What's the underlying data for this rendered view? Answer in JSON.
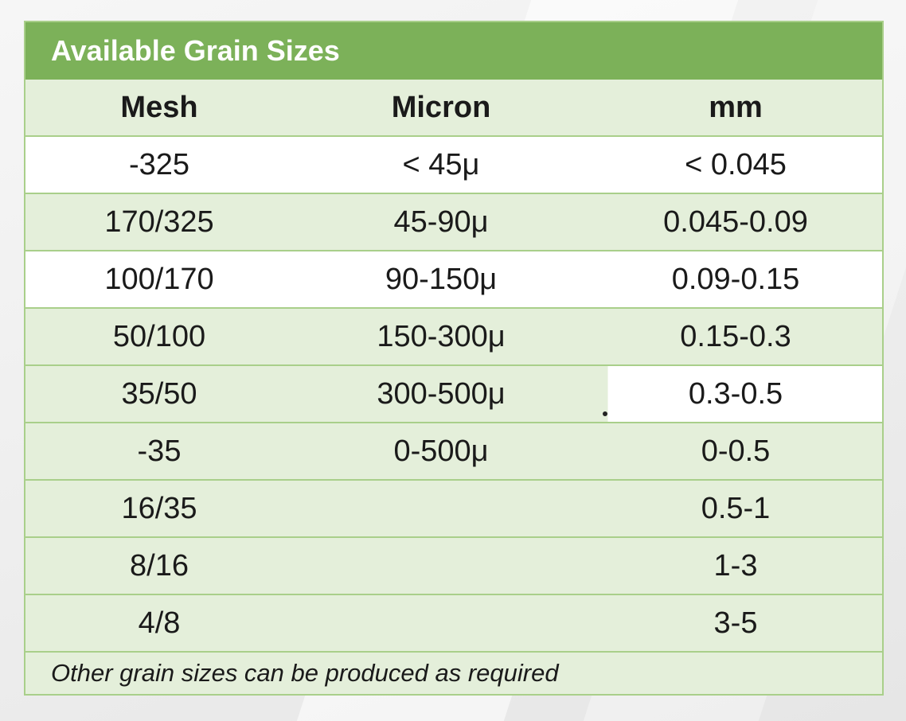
{
  "table": {
    "title": "Available Grain Sizes",
    "headers": [
      "Mesh",
      "Micron",
      "mm"
    ],
    "rows": [
      {
        "mesh": "-325",
        "micron": "< 45μ",
        "mm": "< 0.045"
      },
      {
        "mesh": "170/325",
        "micron": "45-90μ",
        "mm": "0.045-0.09"
      },
      {
        "mesh": "100/170",
        "micron": "90-150μ",
        "mm": "0.09-0.15"
      },
      {
        "mesh": "50/100",
        "micron": "150-300μ",
        "mm": "0.15-0.3"
      },
      {
        "mesh": "35/50",
        "micron": "300-500μ",
        "mm": "0.3-0.5"
      },
      {
        "mesh": "-35",
        "micron": "0-500μ",
        "mm": "0-0.5"
      },
      {
        "mesh": "16/35",
        "micron": "",
        "mm": "0.5-1"
      },
      {
        "mesh": "8/16",
        "micron": "",
        "mm": "1-3"
      },
      {
        "mesh": "4/8",
        "micron": "",
        "mm": "3-5"
      }
    ],
    "footnote": "Other grain sizes can be produced as required"
  },
  "colors": {
    "title_bar": "#7cb159",
    "row_green": "#e4efda",
    "row_white": "#ffffff",
    "border": "#a9cf8a"
  }
}
